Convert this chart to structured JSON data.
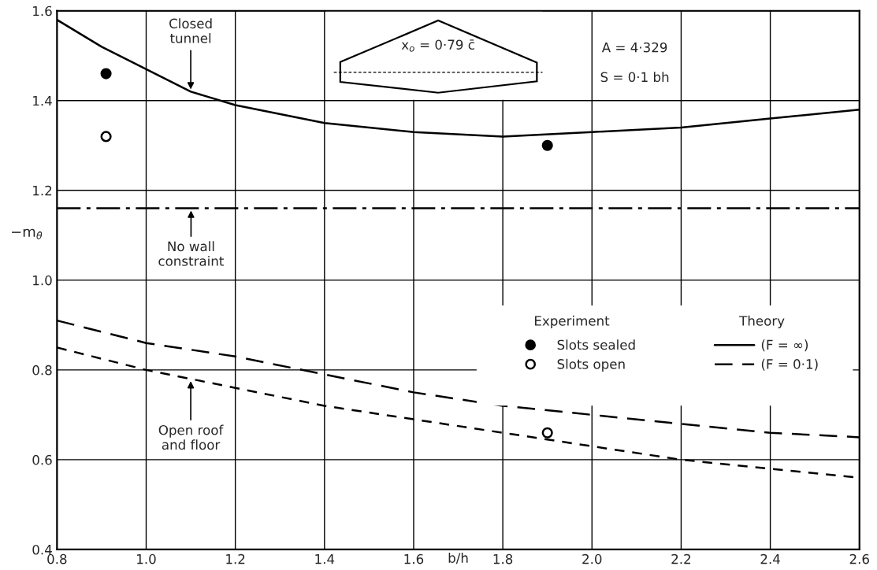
{
  "chart_data": {
    "type": "line",
    "xlabel": "b/h",
    "ylabel": "−m$_{θ̇}$",
    "xlim": [
      0.8,
      2.6
    ],
    "ylim": [
      0.4,
      1.6
    ],
    "xticks": [
      0.8,
      {
        "value": 1.0,
        "label": "1.0"
      },
      1.2,
      1.4,
      1.6,
      1.8,
      {
        "value": 2.0,
        "label": "2.0"
      },
      2.2,
      2.4,
      2.6
    ],
    "yticks": [
      0.4,
      0.6,
      0.8,
      {
        "value": 1.0,
        "label": "1.0"
      },
      1.2,
      1.4,
      1.6
    ],
    "grid": true,
    "legend": "right",
    "series": [
      {
        "type": "scatter",
        "name": "Slots sealed",
        "color": "#000000",
        "marker": "circle",
        "x": [
          0.91,
          1.9
        ],
        "values": [
          1.46,
          1.3
        ]
      },
      {
        "type": "scatter",
        "name": "Slots open",
        "color": "#000000",
        "marker": "open circle",
        "x": [
          0.91,
          1.9
        ],
        "values": [
          1.32,
          0.66
        ]
      },
      {
        "name": "(F = ∞)",
        "color": "#000000",
        "line_style": "solid",
        "x": [
          0.8,
          0.9,
          1.0,
          1.1,
          1.2,
          1.4,
          1.6,
          1.8,
          2.0,
          2.2,
          2.4,
          2.6
        ],
        "values": [
          1.58,
          1.52,
          1.47,
          1.42,
          1.39,
          1.35,
          1.33,
          1.32,
          1.33,
          1.34,
          1.36,
          1.38
        ]
      },
      {
        "name": "(F = 0·1)",
        "color": "#000000",
        "line_style": "dashed",
        "x": [
          0.8,
          1.0,
          1.2,
          1.4,
          1.6,
          1.8,
          2.0,
          2.2,
          2.4,
          2.6
        ],
        "values": [
          0.91,
          0.86,
          0.83,
          0.79,
          0.75,
          0.72,
          0.7,
          0.68,
          0.66,
          0.65
        ]
      },
      {
        "color": "#000000",
        "line_style": "short dashed",
        "x": [
          0.8,
          1.0,
          1.2,
          1.4,
          1.6,
          1.8,
          2.0,
          2.2,
          2.4,
          2.6
        ],
        "values": [
          0.85,
          0.8,
          0.76,
          0.72,
          0.69,
          0.66,
          0.63,
          0.6,
          0.58,
          0.56
        ]
      }
    ],
    "ref_lines": [
      {
        "axis": "y",
        "value": 1.16,
        "label": "No wall\nconstraint",
        "color": "#000000",
        "line_style": "dashdot"
      }
    ],
    "annotations": [
      "A = 4·329",
      "S = 0·1 bh",
      "Experiment",
      "Theory",
      "x$_{o}$ = 0·79 c̄",
      {
        "text": "Closed\ntunnel",
        "x": 1.1,
        "y": 1.42
      },
      {
        "text": "Open roof\nand floor",
        "x": 1.1,
        "y": 0.78
      }
    ]
  }
}
